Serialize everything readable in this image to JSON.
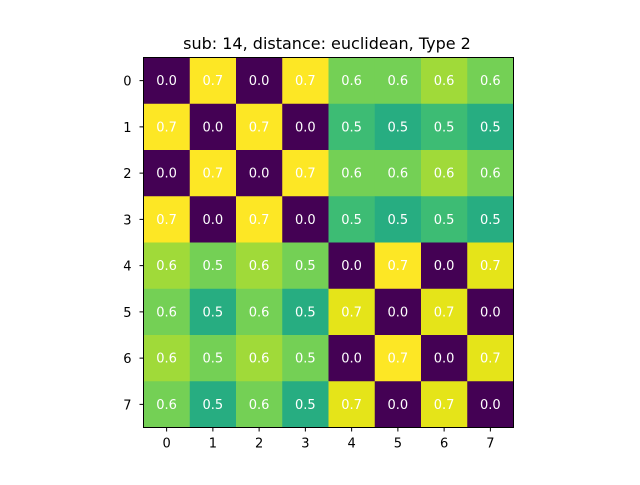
{
  "chart_data": {
    "type": "heatmap",
    "title": "sub: 14, distance: euclidean, Type 2",
    "xlabel": "",
    "ylabel": "",
    "x_ticks": [
      "0",
      "1",
      "2",
      "3",
      "4",
      "5",
      "6",
      "7"
    ],
    "y_ticks": [
      "0",
      "1",
      "2",
      "3",
      "4",
      "5",
      "6",
      "7"
    ],
    "colormap": "viridis",
    "value_range": [
      0.0,
      0.7
    ],
    "grid": false,
    "legend": "none",
    "matrix": [
      [
        0.0,
        0.7,
        0.0,
        0.7,
        0.6,
        0.6,
        0.6,
        0.6
      ],
      [
        0.7,
        0.0,
        0.7,
        0.0,
        0.5,
        0.5,
        0.5,
        0.5
      ],
      [
        0.0,
        0.7,
        0.0,
        0.7,
        0.6,
        0.6,
        0.6,
        0.6
      ],
      [
        0.7,
        0.0,
        0.7,
        0.0,
        0.5,
        0.5,
        0.5,
        0.5
      ],
      [
        0.6,
        0.5,
        0.6,
        0.5,
        0.0,
        0.7,
        0.0,
        0.7
      ],
      [
        0.6,
        0.5,
        0.6,
        0.5,
        0.7,
        0.0,
        0.7,
        0.0
      ],
      [
        0.6,
        0.5,
        0.6,
        0.5,
        0.0,
        0.7,
        0.0,
        0.7
      ],
      [
        0.6,
        0.5,
        0.6,
        0.5,
        0.7,
        0.0,
        0.7,
        0.0
      ]
    ],
    "cell_labels": [
      [
        "0.0",
        "0.7",
        "0.0",
        "0.7",
        "0.6",
        "0.6",
        "0.6",
        "0.6"
      ],
      [
        "0.7",
        "0.0",
        "0.7",
        "0.0",
        "0.5",
        "0.5",
        "0.5",
        "0.5"
      ],
      [
        "0.0",
        "0.7",
        "0.0",
        "0.7",
        "0.6",
        "0.6",
        "0.6",
        "0.6"
      ],
      [
        "0.7",
        "0.0",
        "0.7",
        "0.0",
        "0.5",
        "0.5",
        "0.5",
        "0.5"
      ],
      [
        "0.6",
        "0.5",
        "0.6",
        "0.5",
        "0.0",
        "0.7",
        "0.0",
        "0.7"
      ],
      [
        "0.6",
        "0.5",
        "0.6",
        "0.5",
        "0.7",
        "0.0",
        "0.7",
        "0.0"
      ],
      [
        "0.6",
        "0.5",
        "0.6",
        "0.5",
        "0.0",
        "0.7",
        "0.0",
        "0.7"
      ],
      [
        "0.6",
        "0.5",
        "0.6",
        "0.5",
        "0.7",
        "0.0",
        "0.7",
        "0.0"
      ]
    ],
    "colors": {
      "0.0": "#440154",
      "0.5": "#27ad81",
      "0.6": "#74d055",
      "0.6b": "#a0da39",
      "0.7": "#e5e419",
      "0.7b": "#fde725"
    },
    "cell_colors": [
      [
        "#440154",
        "#fde725",
        "#440154",
        "#fde725",
        "#74d055",
        "#74d055",
        "#a0da39",
        "#74d055"
      ],
      [
        "#fde725",
        "#440154",
        "#fde725",
        "#440154",
        "#3dbc74",
        "#27ad81",
        "#3dbc74",
        "#27ad81"
      ],
      [
        "#440154",
        "#fde725",
        "#440154",
        "#fde725",
        "#74d055",
        "#74d055",
        "#a0da39",
        "#74d055"
      ],
      [
        "#fde725",
        "#440154",
        "#fde725",
        "#440154",
        "#3dbc74",
        "#27ad81",
        "#3dbc74",
        "#27ad81"
      ],
      [
        "#a0da39",
        "#74d055",
        "#a0da39",
        "#74d055",
        "#440154",
        "#fde725",
        "#440154",
        "#e5e419"
      ],
      [
        "#74d055",
        "#27ad81",
        "#74d055",
        "#27ad81",
        "#e5e419",
        "#440154",
        "#e5e419",
        "#440154"
      ],
      [
        "#a0da39",
        "#74d055",
        "#a0da39",
        "#74d055",
        "#440154",
        "#fde725",
        "#440154",
        "#e5e419"
      ],
      [
        "#74d055",
        "#27ad81",
        "#74d055",
        "#27ad81",
        "#e5e419",
        "#440154",
        "#e5e419",
        "#440154"
      ]
    ]
  }
}
